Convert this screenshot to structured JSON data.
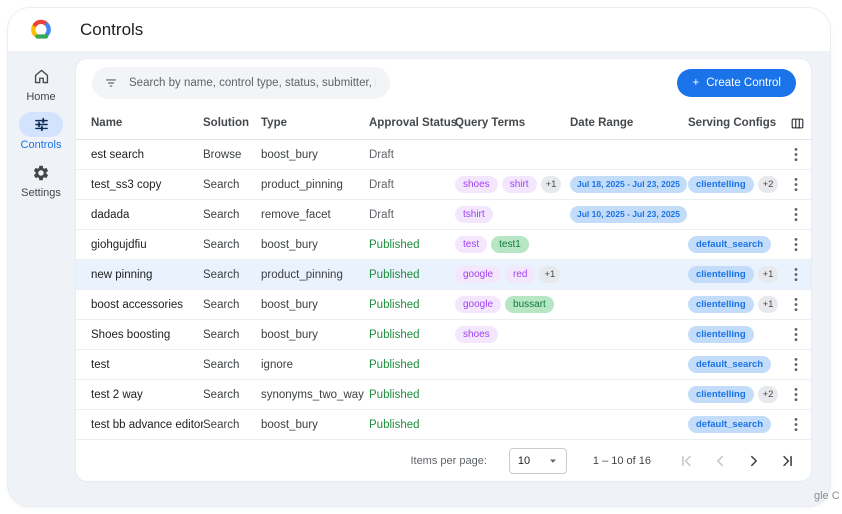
{
  "colors": {
    "accent": "#1a73e8",
    "content_bg": "#eff2f6",
    "sidebar_active_bg": "#d3e3fd",
    "sidebar_active_icon": "#0c2d57",
    "sidebar_icon": "#444746",
    "published_green": "#1e8e3e",
    "draft_gray": "#5f6368",
    "chip_purple_bg": "#f4e7fd",
    "chip_purple_text": "#a142f4",
    "chip_green_bg": "#b6e6c4",
    "chip_green_text": "#127a3d",
    "chip_blue_bg": "#c3dcf9",
    "chip_blue_text": "#1a73e8",
    "chip_count_bg": "#e7e9ec",
    "chip_count_text": "#474a4d",
    "row_highlight": "#eaf2fd"
  },
  "appbar": {
    "title": "Controls"
  },
  "sidebar": {
    "items": [
      {
        "label": "Home",
        "icon": "home-icon",
        "active": false
      },
      {
        "label": "Controls",
        "icon": "sliders-icon",
        "active": true
      },
      {
        "label": "Settings",
        "icon": "gear-icon",
        "active": false
      }
    ]
  },
  "toolbar": {
    "search_placeholder": "Search by name, control type, status, submitter, requested on",
    "create_plus": "+",
    "create_label": "Create Control"
  },
  "table": {
    "columns": [
      "Name",
      "Solution",
      "Type",
      "Approval Status",
      "Query Terms",
      "Date Range",
      "Serving Configs"
    ],
    "rows": [
      {
        "name": "est search",
        "solution": "Browse",
        "type": "boost_bury",
        "status": {
          "label": "Draft",
          "variant": "draft"
        },
        "query_terms": [],
        "date_range": "",
        "serving_configs": [],
        "highlighted": false
      },
      {
        "name": "test_ss3 copy",
        "solution": "Search",
        "type": "product_pinning",
        "status": {
          "label": "Draft",
          "variant": "draft"
        },
        "query_terms": [
          {
            "label": "shoes",
            "variant": "purple"
          },
          {
            "label": "shirt",
            "variant": "purple"
          },
          {
            "label": "+1",
            "variant": "count"
          }
        ],
        "date_range": "Jul 18, 2025 - Jul 23, 2025",
        "serving_configs": [
          {
            "label": "clientelling",
            "variant": "blue"
          },
          {
            "label": "+2",
            "variant": "count"
          }
        ],
        "highlighted": false
      },
      {
        "name": "dadada",
        "solution": "Search",
        "type": "remove_facet",
        "status": {
          "label": "Draft",
          "variant": "draft"
        },
        "query_terms": [
          {
            "label": "tshirt",
            "variant": "purple"
          }
        ],
        "date_range": "Jul 10, 2025 - Jul 23, 2025",
        "serving_configs": [],
        "highlighted": false
      },
      {
        "name": "giohgujdfiu",
        "solution": "Search",
        "type": "boost_bury",
        "status": {
          "label": "Published",
          "variant": "published"
        },
        "query_terms": [
          {
            "label": "test",
            "variant": "purple"
          },
          {
            "label": "test1",
            "variant": "green"
          }
        ],
        "date_range": "",
        "serving_configs": [
          {
            "label": "default_search",
            "variant": "blue"
          }
        ],
        "highlighted": false
      },
      {
        "name": "new pinning",
        "solution": "Search",
        "type": "product_pinning",
        "status": {
          "label": "Published",
          "variant": "published"
        },
        "query_terms": [
          {
            "label": "google",
            "variant": "purple"
          },
          {
            "label": "red",
            "variant": "purple"
          },
          {
            "label": "+1",
            "variant": "count"
          }
        ],
        "date_range": "",
        "serving_configs": [
          {
            "label": "clientelling",
            "variant": "blue"
          },
          {
            "label": "+1",
            "variant": "count"
          }
        ],
        "highlighted": true
      },
      {
        "name": "boost accessories",
        "solution": "Search",
        "type": "boost_bury",
        "status": {
          "label": "Published",
          "variant": "published"
        },
        "query_terms": [
          {
            "label": "google",
            "variant": "purple"
          },
          {
            "label": "bussart",
            "variant": "green"
          }
        ],
        "date_range": "",
        "serving_configs": [
          {
            "label": "clientelling",
            "variant": "blue"
          },
          {
            "label": "+1",
            "variant": "count"
          }
        ],
        "highlighted": false
      },
      {
        "name": "Shoes boosting",
        "solution": "Search",
        "type": "boost_bury",
        "status": {
          "label": "Published",
          "variant": "published"
        },
        "query_terms": [
          {
            "label": "shoes",
            "variant": "purple"
          }
        ],
        "date_range": "",
        "serving_configs": [
          {
            "label": "clientelling",
            "variant": "blue"
          }
        ],
        "highlighted": false
      },
      {
        "name": "test",
        "solution": "Search",
        "type": "ignore",
        "status": {
          "label": "Published",
          "variant": "published"
        },
        "query_terms": [],
        "date_range": "",
        "serving_configs": [
          {
            "label": "default_search",
            "variant": "blue"
          }
        ],
        "highlighted": false
      },
      {
        "name": "test 2 way",
        "solution": "Search",
        "type": "synonyms_two_way",
        "status": {
          "label": "Published",
          "variant": "published"
        },
        "query_terms": [],
        "date_range": "",
        "serving_configs": [
          {
            "label": "clientelling",
            "variant": "blue"
          },
          {
            "label": "+2",
            "variant": "count"
          }
        ],
        "highlighted": false
      },
      {
        "name": "test bb advance editor",
        "solution": "Search",
        "type": "boost_bury",
        "status": {
          "label": "Published",
          "variant": "published"
        },
        "query_terms": [],
        "date_range": "",
        "serving_configs": [
          {
            "label": "default_search",
            "variant": "blue"
          }
        ],
        "highlighted": false
      }
    ]
  },
  "pagination": {
    "items_per_page_label": "Items per page:",
    "page_size": "10",
    "range": "1 – 10 of 16",
    "buttons": [
      {
        "name": "first-page",
        "enabled": false
      },
      {
        "name": "previous-page",
        "enabled": false
      },
      {
        "name": "next-page",
        "enabled": true
      },
      {
        "name": "last-page",
        "enabled": true
      }
    ]
  },
  "watermark": "gle C"
}
